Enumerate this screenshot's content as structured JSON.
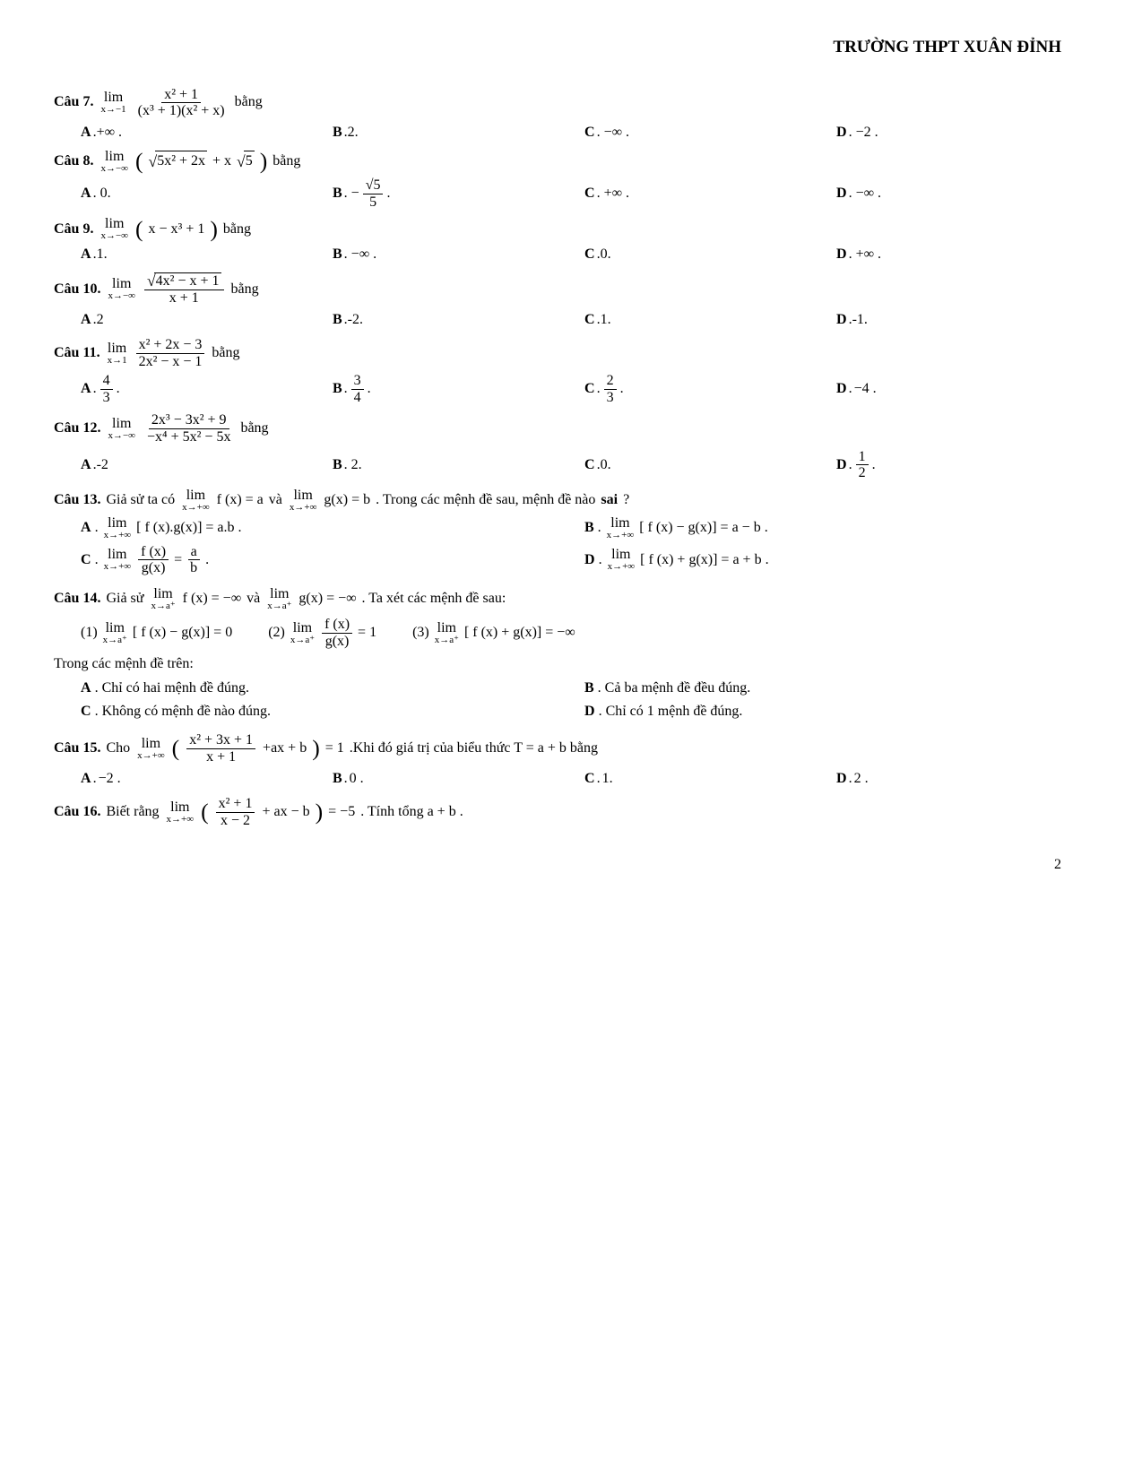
{
  "header": "TRƯỜNG THPT XUÂN ĐỈNH",
  "page_num": "2",
  "word_bang": "bằng",
  "q7": {
    "label": "Câu 7.",
    "lim_sub": "x→−1",
    "num": "x² + 1",
    "den": "(x³ + 1)(x² + x)",
    "A": ".+∞ .",
    "B": ".2.",
    "C": ". −∞ .",
    "D": ". −2 ."
  },
  "q8": {
    "label": "Câu 8.",
    "lim_sub": "x→−∞",
    "expr": "5x² + 2x",
    "tail": " + x",
    "sqrt5": "5",
    "A": ". 0.",
    "B_pre": ". −",
    "B_num": "√5",
    "B_den": "5",
    "B_post": ".",
    "C": ". +∞ .",
    "D": ". −∞ ."
  },
  "q9": {
    "label": "Câu 9.",
    "lim_sub": "x→−∞",
    "expr": "x − x³ + 1",
    "A": ".1.",
    "B": ". −∞ .",
    "C": ".0.",
    "D": ". +∞ ."
  },
  "q10": {
    "label": "Câu 10.",
    "lim_sub": "x→−∞",
    "num": "4x² − x + 1",
    "den": "x + 1",
    "A": ".2",
    "B": ".-2.",
    "C": ".1.",
    "D": ".-1."
  },
  "q11": {
    "label": "Câu 11.",
    "lim_sub": "x→1",
    "num": "x² + 2x − 3",
    "den": "2x² − x − 1",
    "A_num": "4",
    "A_den": "3",
    "B_num": "3",
    "B_den": "4",
    "C_num": "2",
    "C_den": "3",
    "D": "−4 ."
  },
  "q12": {
    "label": "Câu 12.",
    "lim_sub": "x→−∞",
    "num": "2x³ − 3x² + 9",
    "den": "−x⁴ + 5x² − 5x",
    "A": ".-2",
    "B": ". 2.",
    "C": ".0.",
    "D_num": "1",
    "D_den": "2"
  },
  "q13": {
    "label": "Câu 13.",
    "intro_pre": "Giả sử ta có ",
    "lim_sub": "x→+∞",
    "fx_eq_a": "f (x) = a",
    "va": " và ",
    "gx_eq_b": "g(x) = b",
    "intro_post": " . Trong các mệnh đề sau, mệnh đề nào ",
    "sai": "sai",
    "qmark": "?",
    "A_expr": "[ f (x).g(x)] = a.b .",
    "B_expr": "[ f (x) − g(x)] = a − b .",
    "C_num": "f (x)",
    "C_den": "g(x)",
    "C_eq": " = ",
    "C_rhs_num": "a",
    "C_rhs_den": "b",
    "C_post": ".",
    "D_expr": "[ f (x) + g(x)] = a + b ."
  },
  "q14": {
    "label": "Câu 14.",
    "intro_pre": "Giả sử ",
    "lim_sub": "x→a⁺",
    "fx": "f (x) = −∞",
    "va": " và ",
    "gx": "g(x) = −∞",
    "intro_post": " . Ta xét các mệnh đề sau:",
    "s1": "(1)",
    "s1_expr": "[ f (x) − g(x)] = 0",
    "s2": "(2)",
    "s2_num": "f (x)",
    "s2_den": "g(x)",
    "s2_eq": " = 1",
    "s3": "(3)",
    "s3_expr": "[ f (x) + g(x)] = −∞",
    "stmt_line": "Trong các mệnh đề trên:",
    "A": "Chỉ có hai mệnh đề đúng.",
    "B": "Cả ba mệnh đề đều đúng.",
    "C": "Không có mệnh đề nào đúng.",
    "D": "Chỉ có 1 mệnh đề đúng."
  },
  "q15": {
    "label": "Câu 15.",
    "pre": "Cho ",
    "lim_sub": "x→+∞",
    "num": "x² + 3x + 1",
    "den": "x + 1",
    "tail": " +ax + b",
    "eq": " = 1",
    "post": ".Khi đó giá trị của biểu thức T = a + b bằng",
    "A": "−2 .",
    "B": "0 .",
    "C": "1.",
    "D": "2 ."
  },
  "q16": {
    "label": "Câu 16.",
    "pre": "Biết rằng ",
    "lim_sub": "x→+∞",
    "num": "x² + 1",
    "den": "x − 2",
    "tail": " + ax − b",
    "eq": " = −5",
    "post": " . Tính tổng a + b ."
  },
  "labels": {
    "A": "A",
    "B": "B",
    "C": "C",
    "D": "D",
    "dot": ". "
  }
}
